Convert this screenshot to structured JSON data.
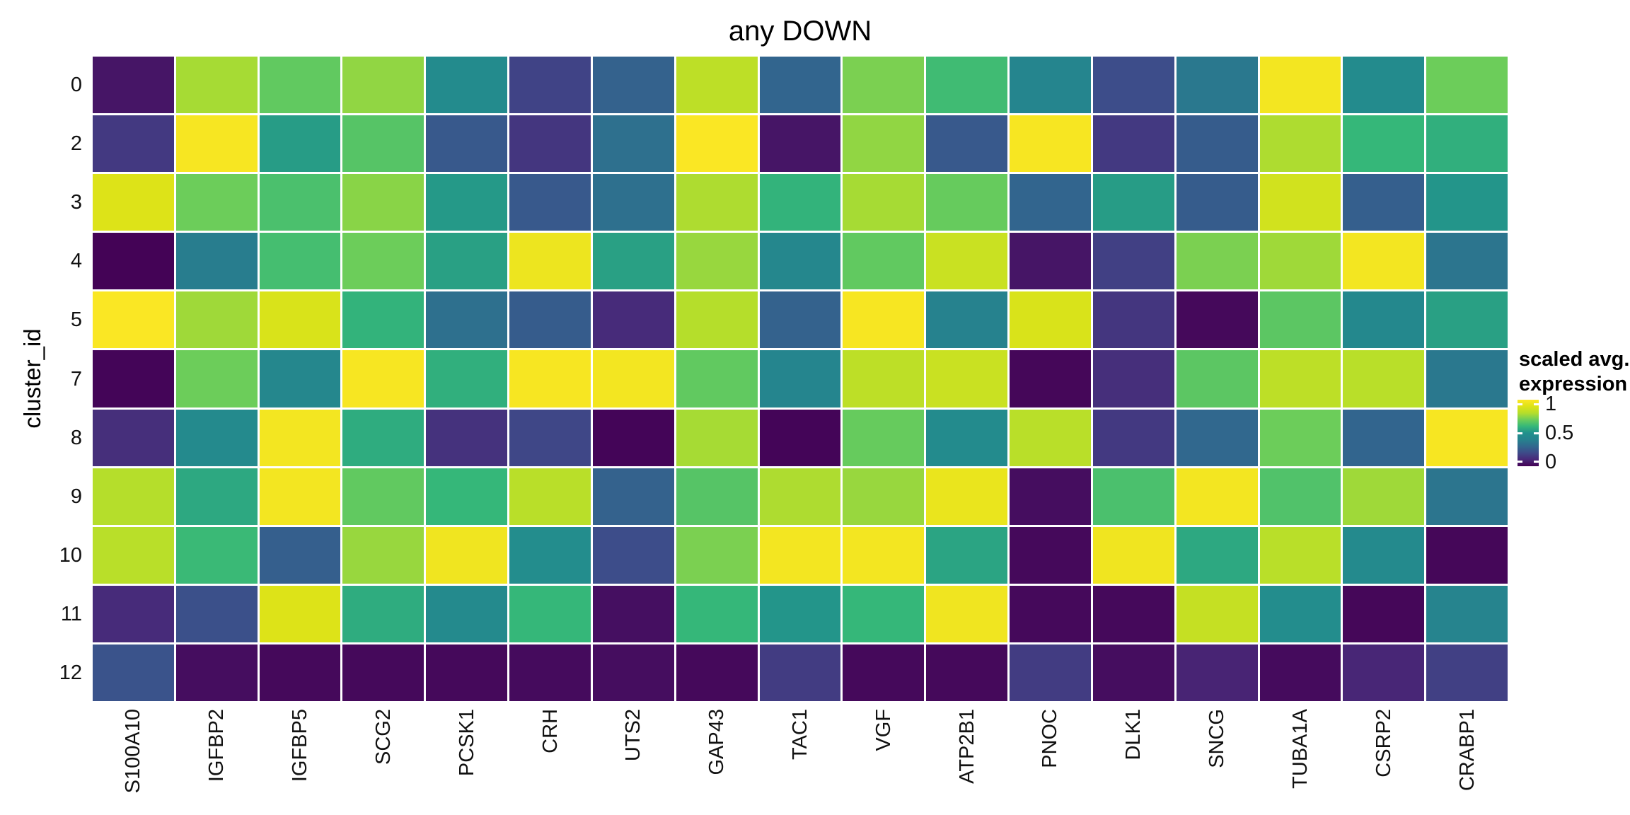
{
  "chart_data": {
    "type": "heatmap",
    "title": "any DOWN",
    "xlabel": "",
    "ylabel": "cluster_id",
    "rows": [
      "0",
      "2",
      "3",
      "4",
      "5",
      "7",
      "8",
      "9",
      "10",
      "11",
      "12"
    ],
    "columns": [
      "S100A10",
      "IGFBP2",
      "IGFBP5",
      "SCG2",
      "PCSK1",
      "CRH",
      "UTS2",
      "GAP43",
      "TAC1",
      "VGF",
      "ATP2B1",
      "PNOC",
      "DLK1",
      "SNCG",
      "TUBA1A",
      "CSRP2",
      "CRABP1"
    ],
    "values": [
      [
        0.05,
        0.78,
        0.68,
        0.75,
        0.46,
        0.18,
        0.28,
        0.82,
        0.29,
        0.72,
        0.62,
        0.42,
        0.21,
        0.36,
        0.97,
        0.46,
        0.7
      ],
      [
        0.15,
        0.98,
        0.53,
        0.66,
        0.25,
        0.14,
        0.33,
        0.99,
        0.05,
        0.75,
        0.25,
        0.98,
        0.15,
        0.26,
        0.79,
        0.6,
        0.58
      ],
      [
        0.9,
        0.7,
        0.64,
        0.74,
        0.52,
        0.25,
        0.33,
        0.79,
        0.59,
        0.78,
        0.69,
        0.29,
        0.53,
        0.26,
        0.87,
        0.27,
        0.51
      ],
      [
        0.005,
        0.38,
        0.63,
        0.7,
        0.54,
        0.95,
        0.54,
        0.76,
        0.43,
        0.68,
        0.85,
        0.05,
        0.17,
        0.72,
        0.77,
        0.97,
        0.35
      ],
      [
        0.99,
        0.77,
        0.89,
        0.59,
        0.33,
        0.26,
        0.11,
        0.8,
        0.28,
        0.98,
        0.4,
        0.89,
        0.14,
        0.02,
        0.67,
        0.44,
        0.54
      ],
      [
        0.01,
        0.7,
        0.43,
        0.98,
        0.58,
        0.98,
        0.97,
        0.68,
        0.42,
        0.82,
        0.85,
        0.015,
        0.12,
        0.67,
        0.82,
        0.81,
        0.36
      ],
      [
        0.12,
        0.45,
        0.97,
        0.57,
        0.13,
        0.19,
        0.01,
        0.78,
        0.01,
        0.69,
        0.46,
        0.81,
        0.15,
        0.3,
        0.7,
        0.29,
        0.98
      ],
      [
        0.8,
        0.56,
        0.97,
        0.68,
        0.6,
        0.81,
        0.28,
        0.66,
        0.79,
        0.76,
        0.94,
        0.03,
        0.64,
        0.97,
        0.65,
        0.77,
        0.35
      ],
      [
        0.81,
        0.61,
        0.27,
        0.76,
        0.96,
        0.47,
        0.21,
        0.72,
        0.97,
        0.97,
        0.55,
        0.02,
        0.96,
        0.56,
        0.81,
        0.45,
        0.015
      ],
      [
        0.11,
        0.22,
        0.9,
        0.57,
        0.45,
        0.6,
        0.035,
        0.6,
        0.51,
        0.6,
        0.96,
        0.02,
        0.02,
        0.84,
        0.47,
        0.015,
        0.41
      ],
      [
        0.23,
        0.03,
        0.02,
        0.02,
        0.02,
        0.025,
        0.03,
        0.02,
        0.16,
        0.02,
        0.02,
        0.16,
        0.03,
        0.09,
        0.025,
        0.095,
        0.17
      ]
    ],
    "colormap": "viridis",
    "viridis_stops": [
      "#440154",
      "#482878",
      "#3e4a89",
      "#31688e",
      "#26828e",
      "#21918c",
      "#35b779",
      "#6ccd5a",
      "#b5de2b",
      "#dde318",
      "#fde725"
    ],
    "legend": {
      "title_lines": [
        "scaled avg.",
        "expression"
      ],
      "ticks": [
        "1",
        "0.5",
        "0"
      ],
      "range": [
        0,
        1
      ]
    },
    "grid": false,
    "background": "#ffffff"
  }
}
